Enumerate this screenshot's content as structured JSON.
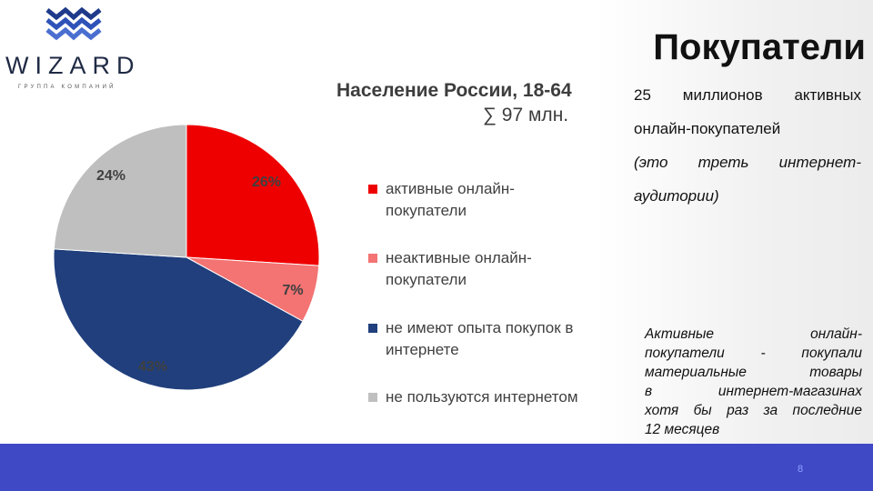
{
  "logo": {
    "name": "WIZARD",
    "subtitle": "ГРУППА КОМПАНИЙ"
  },
  "slide_title": "Покупатели",
  "chart_heading": {
    "line1": "Население России, 18-64",
    "line2": "∑ 97 млн."
  },
  "chart_data": {
    "type": "pie",
    "start_angle_deg": 0,
    "direction": "clockwise",
    "slices": [
      {
        "label": "активные онлайн-покупатели",
        "value": 26,
        "value_label": "26%",
        "color": "#ef0000"
      },
      {
        "label": "неактивные онлайн-покупатели",
        "value": 7,
        "value_label": "7%",
        "color": "#f47373"
      },
      {
        "label": "не имеют опыта покупок в интернете",
        "value": 43,
        "value_label": "43%",
        "color": "#203f7c"
      },
      {
        "label": "не пользуются интернетом",
        "value": 24,
        "value_label": "24%",
        "color": "#bfbfbf"
      }
    ]
  },
  "legend": [
    {
      "lines": [
        "активные онлайн-",
        "покупатели"
      ]
    },
    {
      "lines": [
        "неактивные онлайн-",
        "покупатели"
      ]
    },
    {
      "lines": [
        "не имеют опыта покупок в",
        "интернете"
      ]
    },
    {
      "lines": [
        "не пользуются интернетом"
      ]
    }
  ],
  "right_text": {
    "line1": [
      "25",
      "миллионов",
      "активных"
    ],
    "line2": "онлайн-покупателей",
    "line3": [
      "(это",
      "треть",
      "интернет-"
    ],
    "line4": "аудитории)"
  },
  "note": {
    "lines": [
      [
        "Активные",
        "онлайн-"
      ],
      [
        "покупатели",
        "-",
        "покупали"
      ],
      [
        "материальные",
        "товары"
      ],
      [
        "в",
        "интернет-магазинах"
      ],
      [
        "хотя",
        "бы",
        "раз",
        "за",
        "последние"
      ],
      [
        "12 месяцев"
      ]
    ]
  },
  "footer": {
    "page_number": "8",
    "color": "#3f49c6"
  }
}
